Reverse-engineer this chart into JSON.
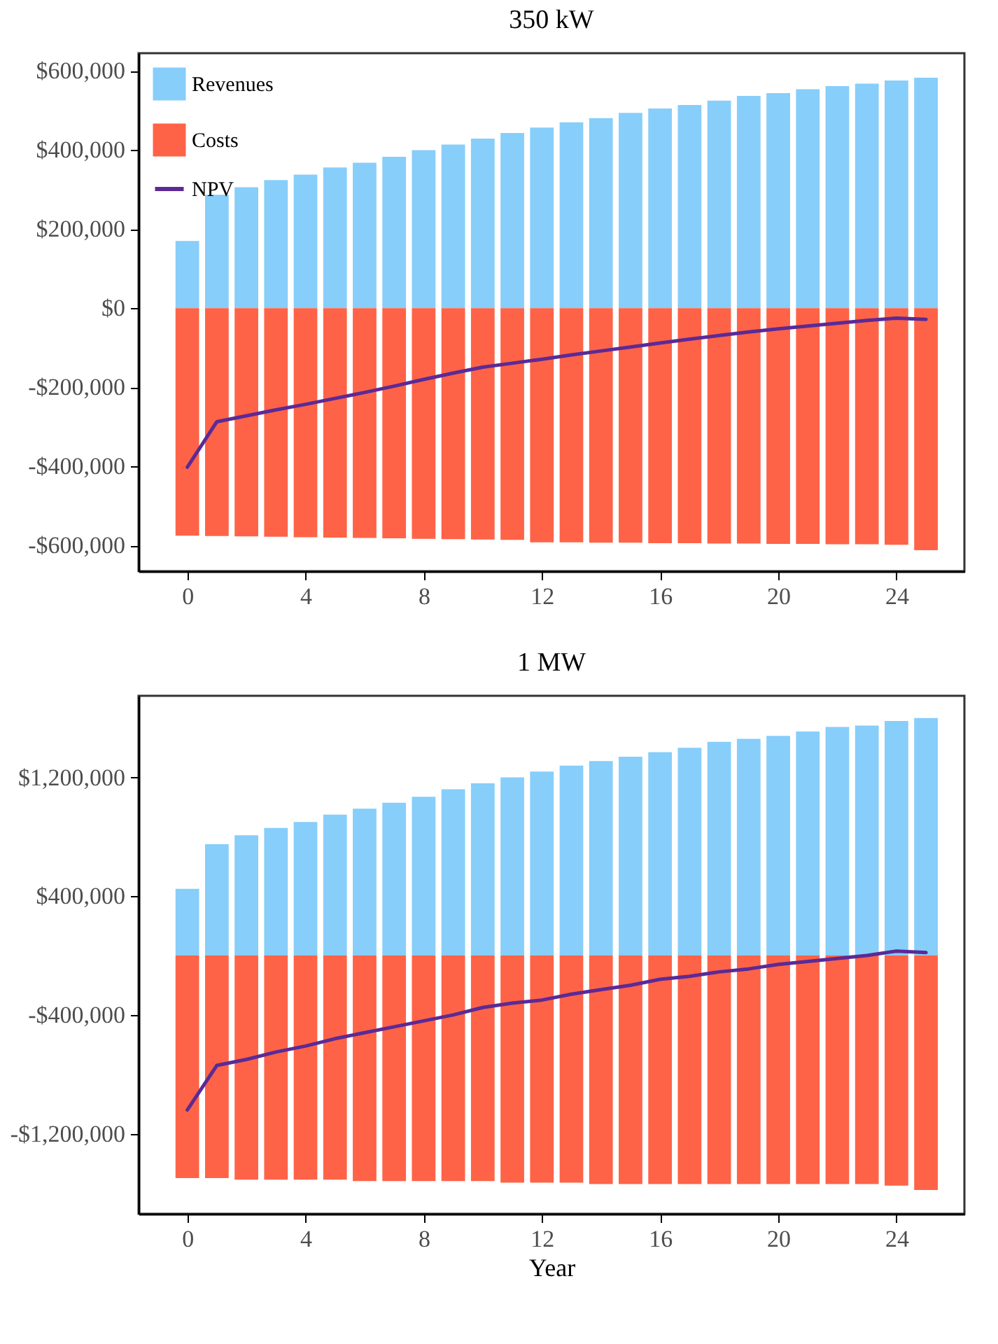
{
  "chart_data": [
    {
      "type": "bar",
      "title": "350 kW",
      "stacked": true,
      "x": [
        0,
        1,
        2,
        3,
        4,
        5,
        6,
        7,
        8,
        9,
        10,
        11,
        12,
        13,
        14,
        15,
        16,
        17,
        18,
        19,
        20,
        21,
        22,
        23,
        24,
        25
      ],
      "series": [
        {
          "name": "Revenues",
          "color": "#87cefa",
          "values": [
            170000,
            287000,
            306000,
            324000,
            338000,
            356000,
            368000,
            383000,
            400000,
            414000,
            429000,
            443000,
            457000,
            470000,
            481000,
            494000,
            505000,
            514000,
            525000,
            537000,
            544000,
            554000,
            562000,
            568000,
            576000,
            583000
          ]
        },
        {
          "name": "Costs",
          "color": "#ff6347",
          "values": [
            -575000,
            -576000,
            -577000,
            -578000,
            -579000,
            -580000,
            -581000,
            -582000,
            -583000,
            -584000,
            -585000,
            -586000,
            -592000,
            -592000,
            -593000,
            -593000,
            -594000,
            -594000,
            -595000,
            -595000,
            -596000,
            -596000,
            -597000,
            -597000,
            -598000,
            -612000
          ]
        },
        {
          "name": "NPV",
          "type": "line",
          "color": "#5b2a96",
          "values": [
            -402000,
            -287000,
            -272000,
            -257000,
            -243000,
            -228000,
            -213000,
            -197000,
            -180000,
            -164000,
            -149000,
            -139000,
            -129000,
            -118000,
            -108000,
            -98000,
            -88000,
            -78000,
            -69000,
            -60000,
            -52000,
            -45000,
            -38000,
            -31000,
            -25000,
            -28000
          ]
        }
      ],
      "xlim": [
        -1.65,
        26.3
      ],
      "xticks": [
        0,
        4,
        8,
        12,
        16,
        20,
        24
      ],
      "ylim": [
        -665000,
        645000
      ],
      "yticks": [
        {
          "value": -600000,
          "label": "-$600,000"
        },
        {
          "value": -400000,
          "label": "-$400,000"
        },
        {
          "value": -200000,
          "label": "-$200,000"
        },
        {
          "value": 0,
          "label": "$0"
        },
        {
          "value": 200000,
          "label": "$200,000"
        },
        {
          "value": 400000,
          "label": "$400,000"
        },
        {
          "value": 600000,
          "label": "$600,000"
        }
      ],
      "grid": false,
      "legend": "top left"
    },
    {
      "type": "bar",
      "title": "1 MW",
      "xlabel": "Year",
      "stacked": true,
      "x": [
        0,
        1,
        2,
        3,
        4,
        5,
        6,
        7,
        8,
        9,
        10,
        11,
        12,
        13,
        14,
        15,
        16,
        17,
        18,
        19,
        20,
        21,
        22,
        23,
        24,
        25
      ],
      "series": [
        {
          "color": "#87cefa",
          "values": [
            450000,
            750000,
            810000,
            860000,
            900000,
            950000,
            990000,
            1030000,
            1070000,
            1120000,
            1160000,
            1200000,
            1240000,
            1280000,
            1310000,
            1340000,
            1370000,
            1400000,
            1440000,
            1460000,
            1480000,
            1510000,
            1540000,
            1550000,
            1580000,
            1600000
          ]
        },
        {
          "color": "#ff6347",
          "values": [
            -1500000,
            -1500000,
            -1510000,
            -1510000,
            -1510000,
            -1510000,
            -1520000,
            -1520000,
            -1520000,
            -1520000,
            -1520000,
            -1530000,
            -1530000,
            -1530000,
            -1540000,
            -1540000,
            -1540000,
            -1540000,
            -1540000,
            -1540000,
            -1540000,
            -1540000,
            -1540000,
            -1540000,
            -1550000,
            -1580000
          ]
        },
        {
          "type": "line",
          "color": "#5b2a96",
          "values": [
            -1040000,
            -740000,
            -700000,
            -650000,
            -610000,
            -560000,
            -520000,
            -480000,
            -440000,
            -400000,
            -350000,
            -320000,
            -300000,
            -260000,
            -230000,
            -200000,
            -160000,
            -140000,
            -110000,
            -90000,
            -60000,
            -40000,
            -20000,
            0,
            30000,
            20000
          ]
        }
      ],
      "xlim": [
        -1.65,
        26.3
      ],
      "xticks": [
        0,
        4,
        8,
        12,
        16,
        20,
        24
      ],
      "ylim": [
        -1740000,
        1750000
      ],
      "yticks": [
        {
          "value": -1200000,
          "label": "-$1,200,000"
        },
        {
          "value": -400000,
          "label": "-$400,000"
        },
        {
          "value": 400000,
          "label": "$400,000"
        },
        {
          "value": 1200000,
          "label": "$1,200,000"
        }
      ],
      "grid": false,
      "legend": false
    }
  ]
}
